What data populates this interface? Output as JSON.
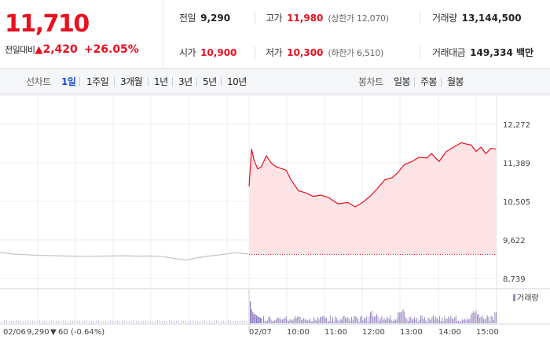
{
  "quote": {
    "current_price": "11,710",
    "change_label": "전일대비",
    "change_arrow": "▲",
    "change_amount": "2,420",
    "change_percent": "+26.05%",
    "stats": {
      "prev_close": {
        "label": "전일",
        "value": "9,290"
      },
      "high": {
        "label": "고가",
        "value": "11,980",
        "limit": "(상한가 12,070)"
      },
      "volume": {
        "label": "거래량",
        "value": "13,144,500"
      },
      "open": {
        "label": "시가",
        "value": "10,900"
      },
      "low": {
        "label": "저가",
        "value": "10,300",
        "limit": "(하한가 6,510)"
      },
      "trade_value": {
        "label": "거래대금",
        "value": "149,334 백만"
      }
    },
    "up_color": "#e8101f"
  },
  "tabs": {
    "line_group": "선차트",
    "line_items": [
      "1일",
      "1주일",
      "3개월",
      "1년",
      "3년",
      "5년",
      "10년"
    ],
    "active_line": "1일",
    "candle_group": "봉차트",
    "candle_items": [
      "일봉",
      "주봉",
      "월봉"
    ]
  },
  "prev_day_info": {
    "date": "02/06",
    "close": "9,290",
    "arrow": "▼",
    "change": "60",
    "percent": "(-0.64%)"
  },
  "chart_data": {
    "type": "line",
    "x_labels": [
      "02/07",
      "10:00",
      "11:00",
      "12:00",
      "13:00",
      "14:00",
      "15:00"
    ],
    "y_ticks": [
      "12,272",
      "11,389",
      "10,505",
      "9,622",
      "8,739"
    ],
    "ylim": [
      8739,
      12272
    ],
    "reference_price": 9290,
    "legend": "거래량",
    "grid": true,
    "series": [
      {
        "key": "prev",
        "x": [
          0,
          0.05,
          0.1,
          0.15,
          0.2,
          0.25,
          0.3,
          0.35,
          0.4,
          0.45,
          0.5,
          0.55,
          0.6,
          0.65,
          0.7,
          0.75,
          0.8,
          0.85,
          0.9,
          0.95,
          1
        ],
        "values": [
          9340,
          9300,
          9285,
          9270,
          9265,
          9255,
          9250,
          9245,
          9250,
          9255,
          9260,
          9250,
          9255,
          9245,
          9200,
          9160,
          9220,
          9260,
          9290,
          9330,
          9300
        ]
      },
      {
        "key": "today",
        "x": [
          0,
          0.01,
          0.02,
          0.035,
          0.05,
          0.07,
          0.09,
          0.11,
          0.13,
          0.15,
          0.17,
          0.2,
          0.23,
          0.26,
          0.29,
          0.32,
          0.36,
          0.4,
          0.43,
          0.46,
          0.49,
          0.52,
          0.55,
          0.58,
          0.6,
          0.63,
          0.66,
          0.69,
          0.72,
          0.74,
          0.77,
          0.8,
          0.83,
          0.86,
          0.88,
          0.9,
          0.92,
          0.94,
          0.96,
          0.98,
          1
        ],
        "values": [
          10850,
          11710,
          11450,
          11250,
          11300,
          11550,
          11380,
          11300,
          11260,
          11220,
          11000,
          10750,
          10700,
          10620,
          10650,
          10600,
          10450,
          10480,
          10380,
          10480,
          10620,
          10800,
          11000,
          11050,
          11150,
          11350,
          11420,
          11520,
          11500,
          11600,
          11420,
          11650,
          11750,
          11850,
          11820,
          11800,
          11650,
          11750,
          11600,
          11720,
          11710
        ]
      }
    ],
    "volume": {
      "legend": "거래량",
      "prev_day": "low",
      "today_first": [
        70,
        45,
        35,
        30,
        28,
        25,
        22,
        20,
        18,
        16
      ],
      "today_base": 8
    }
  }
}
